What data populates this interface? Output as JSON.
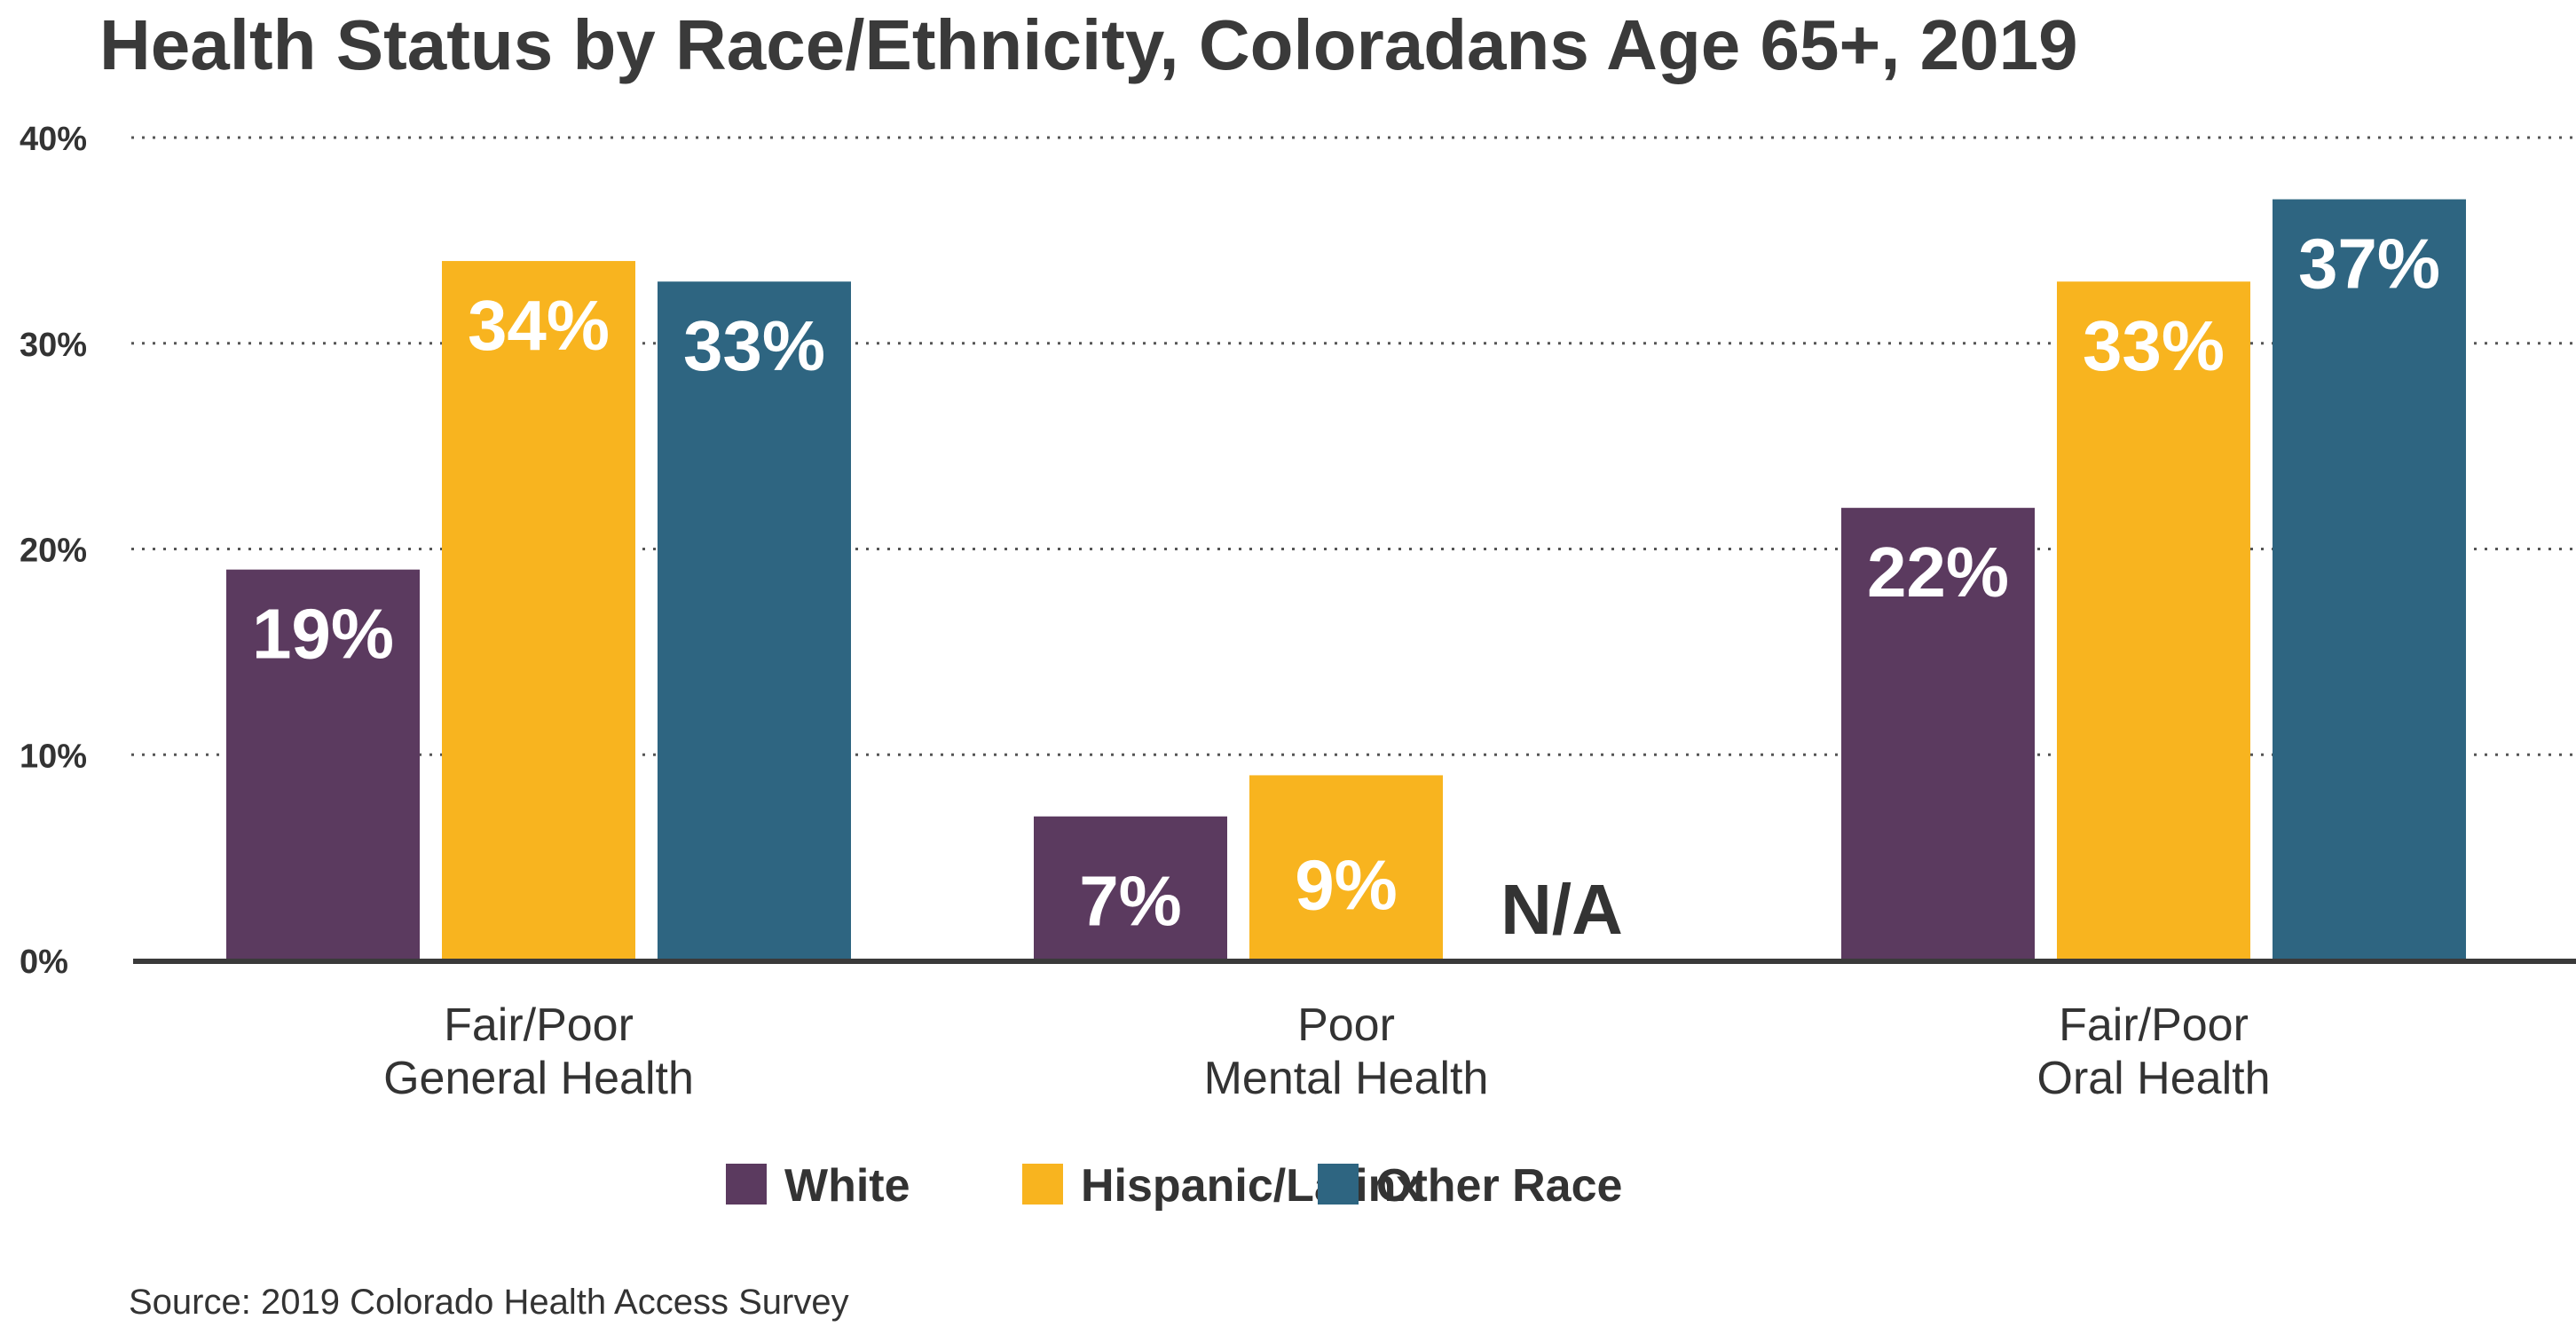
{
  "chart_data": {
    "type": "bar",
    "title": "Health Status by Race/Ethnicity, Coloradans Age 65+, 2019",
    "categories": [
      [
        "Fair/Poor",
        "General Health"
      ],
      [
        "Poor",
        "Mental Health"
      ],
      [
        "Fair/Poor",
        "Oral Health"
      ]
    ],
    "series": [
      {
        "name": "White",
        "color": "#5b3a5f",
        "values": [
          19,
          7,
          22
        ],
        "labels": [
          "19%",
          "7%",
          "22%"
        ]
      },
      {
        "name": "Hispanic/Latinx",
        "color": "#f8b41f",
        "values": [
          34,
          9,
          33
        ],
        "labels": [
          "34%",
          "9%",
          "33%"
        ]
      },
      {
        "name": "Other Race",
        "color": "#2e6581",
        "values": [
          33,
          null,
          37
        ],
        "labels": [
          "33%",
          "N/A",
          "37%"
        ]
      }
    ],
    "ylim": [
      0,
      40
    ],
    "yticks": [
      "0%",
      "10%",
      "20%",
      "30%",
      "40%"
    ],
    "ytick_values": [
      0,
      10,
      20,
      30,
      40
    ],
    "grid": "dotted horizontal",
    "legend_position": "bottom",
    "source": "Source: 2019 Colorado Health Access Survey"
  }
}
